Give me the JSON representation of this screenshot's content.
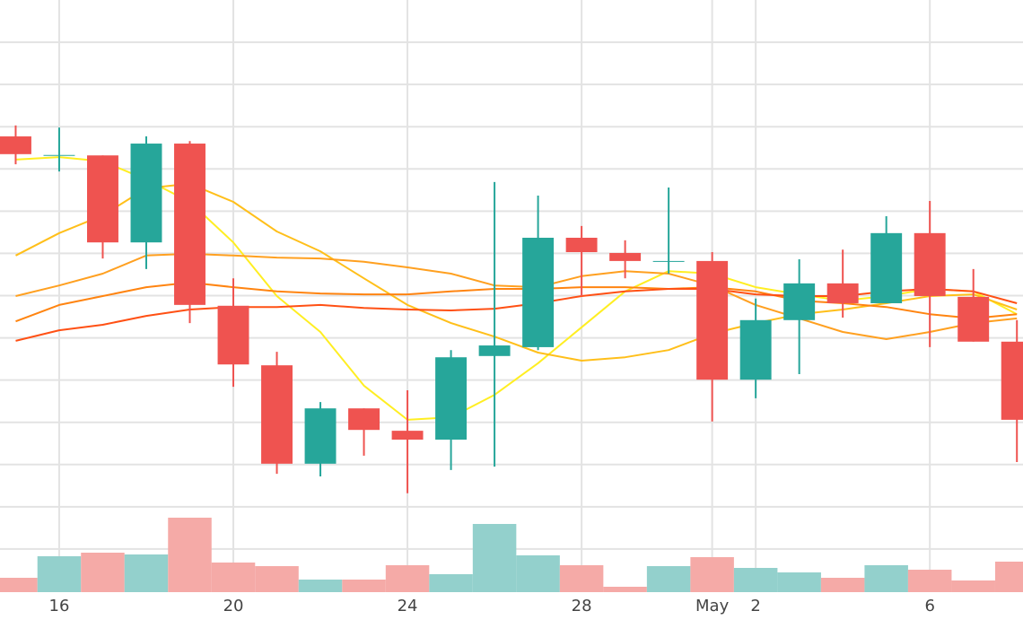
{
  "chart_data": {
    "type": "candlestick",
    "x": [
      15,
      16,
      17,
      18,
      19,
      20,
      21,
      22,
      23,
      24,
      25,
      26,
      27,
      28,
      29,
      30,
      31,
      32,
      33,
      34,
      35,
      36,
      37,
      38
    ],
    "xlim": [
      14.64,
      38.14
    ],
    "xticks": [
      16,
      20,
      24,
      28,
      {
        "value": 31,
        "label": "May"
      },
      {
        "value": 32,
        "label": "2"
      },
      {
        "value": 36,
        "label": "6"
      }
    ],
    "ylim": [
      0,
      14
    ],
    "yticks": [
      1,
      2,
      3,
      4,
      5,
      6,
      7,
      8,
      9,
      10,
      11,
      12,
      13
    ],
    "grid": true,
    "up_color": "#26a69a",
    "down_color": "#ef5350",
    "open": [
      10.77,
      10.32,
      10.32,
      8.26,
      10.6,
      6.76,
      5.35,
      3.02,
      4.33,
      3.8,
      3.59,
      5.57,
      5.78,
      8.37,
      8.01,
      7.81,
      7.82,
      5.01,
      6.42,
      7.29,
      6.82,
      8.48,
      6.97,
      5.91
    ],
    "high": [
      11.03,
      10.98,
      10.32,
      10.77,
      10.66,
      7.41,
      5.67,
      4.48,
      4.33,
      4.76,
      5.71,
      9.69,
      9.37,
      8.65,
      8.31,
      9.56,
      8.03,
      6.93,
      7.86,
      8.09,
      8.88,
      9.24,
      7.63,
      6.42
    ],
    "low": [
      10.11,
      9.94,
      7.88,
      7.63,
      6.35,
      4.84,
      2.78,
      2.72,
      3.21,
      2.32,
      2.87,
      2.95,
      5.71,
      6.99,
      7.41,
      7.52,
      4.02,
      4.57,
      5.14,
      6.48,
      6.82,
      5.78,
      5.91,
      3.06
    ],
    "close": [
      10.35,
      10.33,
      8.26,
      10.6,
      6.78,
      5.37,
      3.02,
      4.33,
      3.82,
      3.59,
      5.54,
      5.82,
      8.37,
      8.03,
      7.82,
      7.82,
      5.01,
      6.42,
      7.29,
      6.82,
      8.48,
      6.99,
      5.91,
      4.06
    ],
    "volume": {
      "values": [
        16,
        40,
        44,
        42,
        83,
        33,
        29,
        14,
        14,
        30,
        20,
        76,
        41,
        30,
        6,
        29,
        39,
        27,
        22,
        16,
        30,
        25,
        13,
        34
      ],
      "ylim": [
        0,
        100
      ],
      "up_color": "#93d0cc",
      "down_color": "#f5aaa7"
    },
    "moving_averages": [
      {
        "color": "#ffee22",
        "values": [
          10.22,
          10.28,
          10.18,
          9.75,
          9.22,
          8.26,
          6.99,
          6.14,
          4.87,
          4.06,
          4.12,
          4.65,
          5.4,
          6.25,
          7.1,
          7.58,
          7.52,
          7.2,
          7.03,
          6.88,
          6.99,
          7.16,
          7.1,
          6.56
        ]
      },
      {
        "color": "#ffbf1a",
        "values": [
          7.95,
          8.48,
          8.9,
          9.54,
          9.65,
          9.22,
          8.52,
          8.05,
          7.41,
          6.78,
          6.35,
          6.03,
          5.65,
          5.46,
          5.54,
          5.71,
          6.1,
          6.35,
          6.56,
          6.67,
          6.82,
          6.99,
          7.03,
          6.67
        ]
      },
      {
        "color": "#ffa020",
        "values": [
          6.99,
          7.24,
          7.52,
          7.95,
          7.99,
          7.95,
          7.9,
          7.88,
          7.8,
          7.67,
          7.52,
          7.24,
          7.2,
          7.46,
          7.58,
          7.52,
          7.24,
          6.78,
          6.46,
          6.14,
          5.97,
          6.14,
          6.35,
          6.46
        ]
      },
      {
        "color": "#ff8410",
        "values": [
          6.39,
          6.78,
          6.99,
          7.2,
          7.31,
          7.2,
          7.1,
          7.05,
          7.03,
          7.03,
          7.1,
          7.16,
          7.16,
          7.2,
          7.2,
          7.16,
          7.2,
          7.1,
          6.88,
          6.82,
          6.73,
          6.56,
          6.46,
          6.56
        ]
      },
      {
        "color": "#ff5014",
        "values": [
          5.93,
          6.18,
          6.31,
          6.52,
          6.67,
          6.73,
          6.73,
          6.78,
          6.71,
          6.67,
          6.65,
          6.69,
          6.82,
          6.99,
          7.1,
          7.16,
          7.16,
          7.03,
          6.99,
          6.99,
          7.1,
          7.16,
          7.1,
          6.82
        ]
      }
    ]
  }
}
